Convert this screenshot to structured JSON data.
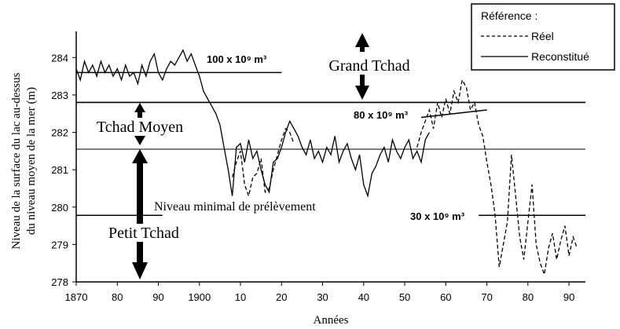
{
  "chart_data": {
    "type": "line",
    "y_label": [
      "Niveau de la surface du lac au-dessus",
      "du niveau moyen de la mer (m)"
    ],
    "x_label": "Années",
    "xlim": [
      1870,
      1994
    ],
    "ylim": [
      278,
      284.7
    ],
    "xticks": [
      {
        "value": 1870,
        "label": "1870"
      },
      {
        "value": 1880,
        "label": "80"
      },
      {
        "value": 1890,
        "label": "90"
      },
      {
        "value": 1900,
        "label": "1900"
      },
      {
        "value": 1910,
        "label": "10"
      },
      {
        "value": 1920,
        "label": "20"
      },
      {
        "value": 1930,
        "label": "30"
      },
      {
        "value": 1940,
        "label": "40"
      },
      {
        "value": 1950,
        "label": "50"
      },
      {
        "value": 1960,
        "label": "60"
      },
      {
        "value": 1970,
        "label": "70"
      },
      {
        "value": 1980,
        "label": "80"
      },
      {
        "value": 1990,
        "label": "90"
      }
    ],
    "yticks": [
      278,
      279,
      280,
      281,
      282,
      283,
      284
    ],
    "legend_title": "Référence :",
    "series": [
      {
        "name": "Réel",
        "color": "#000",
        "dashed": true,
        "x": [
          1908,
          1909,
          1910,
          1911,
          1912,
          1913,
          1914,
          1915,
          1916,
          1917,
          1918,
          1919,
          1920,
          1921,
          1922,
          1923,
          1924,
          1925,
          1926,
          1927,
          1928,
          1929,
          1930,
          1931,
          1932,
          1933,
          1934,
          1935,
          1936,
          1937,
          1938,
          1939,
          1940,
          1941,
          1942,
          1943,
          1944,
          1945,
          1946,
          1947,
          1948,
          1949,
          1950,
          1951,
          1952,
          1953,
          1954,
          1955,
          1956,
          1957,
          1958,
          1959,
          1960,
          1961,
          1962,
          1963,
          1964,
          1965,
          1966,
          1967,
          1968,
          1969,
          1970,
          1971,
          1972,
          1973,
          1974,
          1975,
          1976,
          1977,
          1978,
          1979,
          1980,
          1981,
          1982,
          1983,
          1984,
          1985,
          1986,
          1987,
          1988,
          1989,
          1990,
          1991,
          1992
        ],
        "values": [
          280.8,
          281.2,
          281.5,
          280.6,
          280.3,
          280.8,
          280.9,
          281.3,
          280.4,
          280.5,
          281.0,
          281.4,
          281.8,
          282.1,
          282.0,
          281.7,
          null,
          null,
          null,
          null,
          null,
          null,
          null,
          null,
          null,
          null,
          null,
          null,
          null,
          null,
          null,
          null,
          null,
          null,
          null,
          null,
          null,
          null,
          null,
          null,
          null,
          null,
          null,
          null,
          null,
          281.6,
          282.0,
          282.3,
          282.6,
          282.1,
          282.8,
          282.4,
          282.9,
          282.5,
          283.1,
          282.8,
          283.4,
          283.2,
          282.6,
          282.8,
          282.2,
          281.9,
          281.2,
          280.6,
          279.8,
          278.4,
          279.0,
          279.6,
          281.4,
          280.3,
          279.2,
          278.6,
          279.6,
          280.6,
          279.0,
          278.5,
          278.2,
          278.9,
          279.3,
          278.6,
          279.1,
          279.5,
          278.7,
          279.2,
          278.9
        ]
      },
      {
        "name": "Reconstitué",
        "color": "#000",
        "dashed": false,
        "x": [
          1870,
          1871,
          1872,
          1873,
          1874,
          1875,
          1876,
          1877,
          1878,
          1879,
          1880,
          1881,
          1882,
          1883,
          1884,
          1885,
          1886,
          1887,
          1888,
          1889,
          1890,
          1891,
          1892,
          1893,
          1894,
          1895,
          1896,
          1897,
          1898,
          1899,
          1900,
          1901,
          1902,
          1903,
          1904,
          1905,
          1906,
          1907,
          1908,
          1909,
          1910,
          1911,
          1912,
          1913,
          1914,
          1915,
          1916,
          1917,
          1918,
          1919,
          1920,
          1921,
          1922,
          1923,
          1924,
          1925,
          1926,
          1927,
          1928,
          1929,
          1930,
          1931,
          1932,
          1933,
          1934,
          1935,
          1936,
          1937,
          1938,
          1939,
          1940,
          1941,
          1942,
          1943,
          1944,
          1945,
          1946,
          1947,
          1948,
          1949,
          1950,
          1951,
          1952,
          1953,
          1954,
          1955,
          1956
        ],
        "values": [
          283.7,
          283.4,
          283.9,
          283.6,
          283.8,
          283.5,
          283.9,
          283.6,
          283.8,
          283.5,
          283.7,
          283.4,
          283.8,
          283.5,
          283.6,
          283.3,
          283.8,
          283.5,
          283.9,
          284.1,
          283.6,
          283.4,
          283.7,
          283.9,
          283.8,
          284.0,
          284.2,
          283.9,
          284.1,
          283.8,
          283.5,
          283.1,
          282.9,
          282.7,
          282.5,
          282.2,
          281.6,
          281.0,
          280.3,
          281.6,
          281.7,
          281.2,
          281.8,
          281.3,
          281.5,
          281.0,
          280.6,
          280.4,
          281.2,
          281.3,
          281.6,
          282.0,
          282.3,
          282.1,
          281.9,
          281.6,
          281.4,
          281.8,
          281.3,
          281.5,
          281.2,
          281.6,
          281.4,
          281.9,
          281.2,
          281.5,
          281.7,
          281.3,
          281.0,
          281.4,
          280.6,
          280.3,
          280.9,
          281.1,
          281.4,
          281.6,
          281.2,
          281.8,
          281.5,
          281.3,
          281.6,
          281.8,
          281.3,
          281.5,
          281.2,
          281.8,
          282.0
        ]
      }
    ],
    "reference_lines": [
      {
        "x": [
          1870,
          1994
        ],
        "y": [
          282.8,
          282.8
        ]
      },
      {
        "x": [
          1870,
          1994
        ],
        "y": [
          281.55,
          281.55
        ]
      },
      {
        "x": [
          1870,
          1891
        ],
        "y": [
          279.78,
          279.78
        ]
      },
      {
        "x": [
          1870,
          1920
        ],
        "y": [
          283.6,
          283.6
        ]
      },
      {
        "x": [
          1954,
          1970
        ],
        "y": [
          282.4,
          282.6
        ]
      },
      {
        "x": [
          1968,
          1994
        ],
        "y": [
          279.78,
          279.78
        ]
      }
    ],
    "annotations": [
      "Grand Tchad",
      "Tchad Moyen",
      "Petit Tchad",
      "Niveau minimal de prélèvement",
      "100 x 10⁹ m³",
      "80 x 10⁹ m³",
      "30 x 10⁹ m³"
    ]
  }
}
